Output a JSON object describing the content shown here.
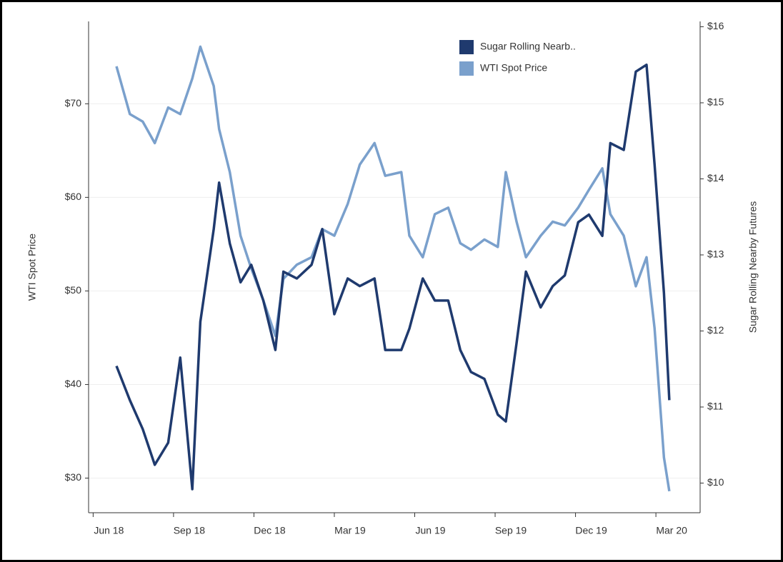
{
  "chart_data": {
    "type": "line",
    "y_label": "WTI Spot Price",
    "y2_label": "Sugar Rolling Nearby Futures",
    "legend": "top-right",
    "grid": true,
    "x": [
      0.87,
      1.37,
      1.85,
      2.3,
      2.8,
      3.25,
      3.7,
      4.0,
      4.5,
      4.7,
      5.1,
      5.5,
      5.9,
      6.35,
      6.8,
      7.1,
      7.6,
      8.15,
      8.55,
      9.0,
      9.5,
      9.95,
      10.5,
      10.9,
      11.5,
      11.8,
      12.3,
      12.75,
      13.25,
      13.7,
      14.1,
      14.6,
      15.1,
      15.4,
      15.8,
      16.15,
      16.7,
      17.15,
      17.6,
      18.1,
      18.5,
      19.0,
      19.3,
      19.8,
      20.25,
      20.65,
      20.95,
      21.3,
      21.5
    ],
    "xlim": [
      -0.17,
      22.65
    ],
    "xticks": [
      {
        "value": 0,
        "label": "Jun 18"
      },
      {
        "value": 3,
        "label": "Sep 18"
      },
      {
        "value": 6,
        "label": "Dec 18"
      },
      {
        "value": 9,
        "label": "Mar 19"
      },
      {
        "value": 12,
        "label": "Jun 19"
      },
      {
        "value": 15,
        "label": "Sep 19"
      },
      {
        "value": 18,
        "label": "Dec 19"
      },
      {
        "value": 21,
        "label": "Mar 20"
      }
    ],
    "ylim": [
      26.3,
      78.8
    ],
    "yticks": [
      {
        "value": 30,
        "label": "$30"
      },
      {
        "value": 40,
        "label": "$40"
      },
      {
        "value": 50,
        "label": "$50"
      },
      {
        "value": 60,
        "label": "$60"
      },
      {
        "value": 70,
        "label": "$70"
      }
    ],
    "y2lim": [
      9.61,
      16.07
    ],
    "y2ticks": [
      {
        "value": 10,
        "label": "$10"
      },
      {
        "value": 11,
        "label": "$11"
      },
      {
        "value": 12,
        "label": "$12"
      },
      {
        "value": 13,
        "label": "$13"
      },
      {
        "value": 14,
        "label": "$14"
      },
      {
        "value": 15,
        "label": "$15"
      },
      {
        "value": 16,
        "label": "$16"
      }
    ],
    "series": [
      {
        "name": "Sugar Rolling Nearb..",
        "color": "#1f3a6e",
        "axis": "y2",
        "values": [
          11.54,
          11.09,
          10.71,
          10.24,
          10.53,
          11.65,
          9.92,
          12.12,
          13.34,
          13.95,
          13.15,
          12.64,
          12.87,
          12.4,
          11.75,
          12.78,
          12.69,
          12.87,
          13.34,
          12.22,
          12.69,
          12.59,
          12.69,
          11.75,
          11.75,
          12.03,
          12.69,
          12.4,
          12.4,
          11.75,
          11.46,
          11.37,
          10.9,
          10.81,
          11.84,
          12.78,
          12.31,
          12.59,
          12.73,
          13.43,
          13.53,
          13.25,
          14.47,
          14.38,
          15.41,
          15.5,
          14.19,
          12.5,
          11.09
        ]
      },
      {
        "name": "WTI Spot Price",
        "color": "#7aa0cc",
        "values": [
          74.0,
          68.9,
          68.1,
          65.8,
          69.6,
          68.9,
          72.7,
          76.1,
          71.9,
          67.3,
          62.7,
          55.9,
          52.4,
          49.0,
          45.2,
          51.3,
          52.8,
          53.6,
          56.6,
          55.9,
          59.3,
          63.5,
          65.8,
          62.3,
          62.7,
          55.9,
          53.6,
          58.2,
          58.9,
          55.1,
          54.4,
          55.5,
          54.7,
          62.7,
          57.4,
          53.6,
          55.9,
          57.4,
          57.0,
          58.9,
          60.8,
          63.1,
          58.2,
          55.9,
          50.5,
          53.6,
          46.0,
          32.2,
          28.6
        ]
      }
    ]
  }
}
